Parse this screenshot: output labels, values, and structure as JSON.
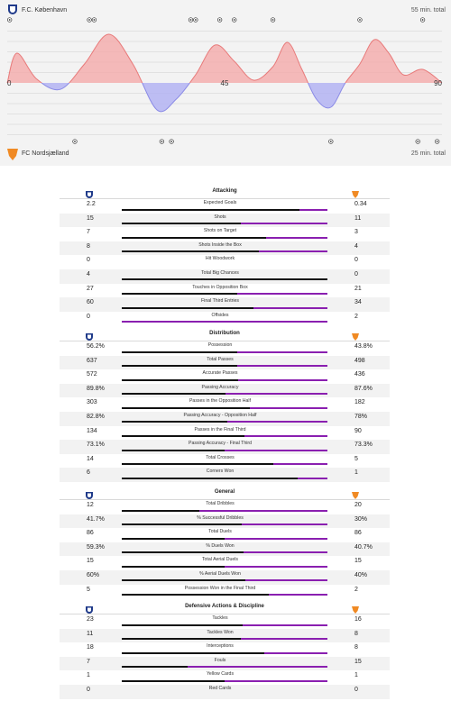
{
  "header": {
    "home_team": "F.C. København",
    "away_team": "FC Nordsjælland",
    "home_total": "55 min. total",
    "away_total": "25 min. total"
  },
  "colors": {
    "home_positive": "#f4a6a6",
    "home_line": "#e87a7a",
    "away_negative": "#b3b3f2",
    "away_line": "#8a8ae6",
    "home_bar": "#111111",
    "away_bar": "#8a1fb0"
  },
  "chart_data": {
    "type": "area",
    "x_ticks": [
      "0",
      "45",
      "90"
    ],
    "xlim": [
      0,
      90
    ],
    "ylim": [
      -1,
      1
    ],
    "x": [
      0,
      2,
      6,
      11,
      16,
      21,
      26,
      31,
      35,
      39,
      43,
      47,
      51,
      55,
      58,
      61,
      64,
      67,
      70,
      73,
      76,
      79,
      82,
      86,
      90
    ],
    "values": [
      0,
      0.55,
      0.08,
      -0.12,
      0.35,
      0.9,
      0.35,
      -0.5,
      -0.3,
      0.15,
      0.7,
      0.4,
      0.05,
      0.3,
      0.75,
      0.25,
      -0.3,
      -0.45,
      0.0,
      0.35,
      0.8,
      0.55,
      0.15,
      0.25,
      0
    ],
    "home_events": [
      0.5,
      17,
      18,
      38,
      39,
      44,
      47,
      55,
      73,
      86
    ],
    "away_events": [
      14,
      32,
      34,
      67,
      85,
      89
    ]
  },
  "sections": [
    {
      "title": "Attacking",
      "rows": [
        {
          "label": "Expected Goals",
          "home": "2.2",
          "away": "0.34",
          "hv": 2.2,
          "av": 0.34
        },
        {
          "label": "Shots",
          "home": "15",
          "away": "11",
          "hv": 15,
          "av": 11
        },
        {
          "label": "Shots on Target",
          "home": "7",
          "away": "3",
          "hv": 7,
          "av": 3
        },
        {
          "label": "Shots Inside the Box",
          "home": "8",
          "away": "4",
          "hv": 8,
          "av": 4
        },
        {
          "label": "Hit Woodwork",
          "home": "0",
          "away": "0",
          "hv": 0,
          "av": 0
        },
        {
          "label": "Total Big Chances",
          "home": "4",
          "away": "0",
          "hv": 4,
          "av": 0
        },
        {
          "label": "Touches in Opposition Box",
          "home": "27",
          "away": "21",
          "hv": 27,
          "av": 21
        },
        {
          "label": "Final Third Entries",
          "home": "60",
          "away": "34",
          "hv": 60,
          "av": 34
        },
        {
          "label": "Offsides",
          "home": "0",
          "away": "2",
          "hv": 0,
          "av": 2
        }
      ]
    },
    {
      "title": "Distribution",
      "rows": [
        {
          "label": "Possession",
          "home": "56.2%",
          "away": "43.8%",
          "hv": 56.2,
          "av": 43.8
        },
        {
          "label": "Total Passes",
          "home": "637",
          "away": "498",
          "hv": 637,
          "av": 498
        },
        {
          "label": "Accurate Passes",
          "home": "572",
          "away": "436",
          "hv": 572,
          "av": 436
        },
        {
          "label": "Passing Accuracy",
          "home": "89.8%",
          "away": "87.6%",
          "hv": 89.8,
          "av": 87.6
        },
        {
          "label": "Passes in the Opposition Half",
          "home": "303",
          "away": "182",
          "hv": 303,
          "av": 182
        },
        {
          "label": "Passing Accuracy - Opposition Half",
          "home": "82.8%",
          "away": "78%",
          "hv": 82.8,
          "av": 78
        },
        {
          "label": "Passes in the Final Third",
          "home": "134",
          "away": "90",
          "hv": 134,
          "av": 90
        },
        {
          "label": "Passing Accuracy - Final Third",
          "home": "73.1%",
          "away": "73.3%",
          "hv": 73.1,
          "av": 73.3
        },
        {
          "label": "Total Crosses",
          "home": "14",
          "away": "5",
          "hv": 14,
          "av": 5
        },
        {
          "label": "Corners Won",
          "home": "6",
          "away": "1",
          "hv": 6,
          "av": 1
        }
      ]
    },
    {
      "title": "General",
      "rows": [
        {
          "label": "Total Dribbles",
          "home": "12",
          "away": "20",
          "hv": 12,
          "av": 20
        },
        {
          "label": "% Successful Dribbles",
          "home": "41.7%",
          "away": "30%",
          "hv": 41.7,
          "av": 30
        },
        {
          "label": "Total Duels",
          "home": "86",
          "away": "86",
          "hv": 86,
          "av": 86
        },
        {
          "label": "% Duels Won",
          "home": "59.3%",
          "away": "40.7%",
          "hv": 59.3,
          "av": 40.7
        },
        {
          "label": "Total Aerial Duels",
          "home": "15",
          "away": "15",
          "hv": 15,
          "av": 15
        },
        {
          "label": "% Aerial Duels Won",
          "home": "60%",
          "away": "40%",
          "hv": 60,
          "av": 40
        },
        {
          "label": "Possession Won in the Final Third",
          "home": "5",
          "away": "2",
          "hv": 5,
          "av": 2
        }
      ]
    },
    {
      "title": "Defensive Actions & Discipline",
      "rows": [
        {
          "label": "Tackles",
          "home": "23",
          "away": "16",
          "hv": 23,
          "av": 16
        },
        {
          "label": "Tackles Won",
          "home": "11",
          "away": "8",
          "hv": 11,
          "av": 8
        },
        {
          "label": "Interceptions",
          "home": "18",
          "away": "8",
          "hv": 18,
          "av": 8
        },
        {
          "label": "Fouls",
          "home": "7",
          "away": "15",
          "hv": 7,
          "av": 15
        },
        {
          "label": "Yellow Cards",
          "home": "1",
          "away": "1",
          "hv": 1,
          "av": 1
        },
        {
          "label": "Red Cards",
          "home": "0",
          "away": "0",
          "hv": 0,
          "av": 0
        }
      ]
    }
  ]
}
